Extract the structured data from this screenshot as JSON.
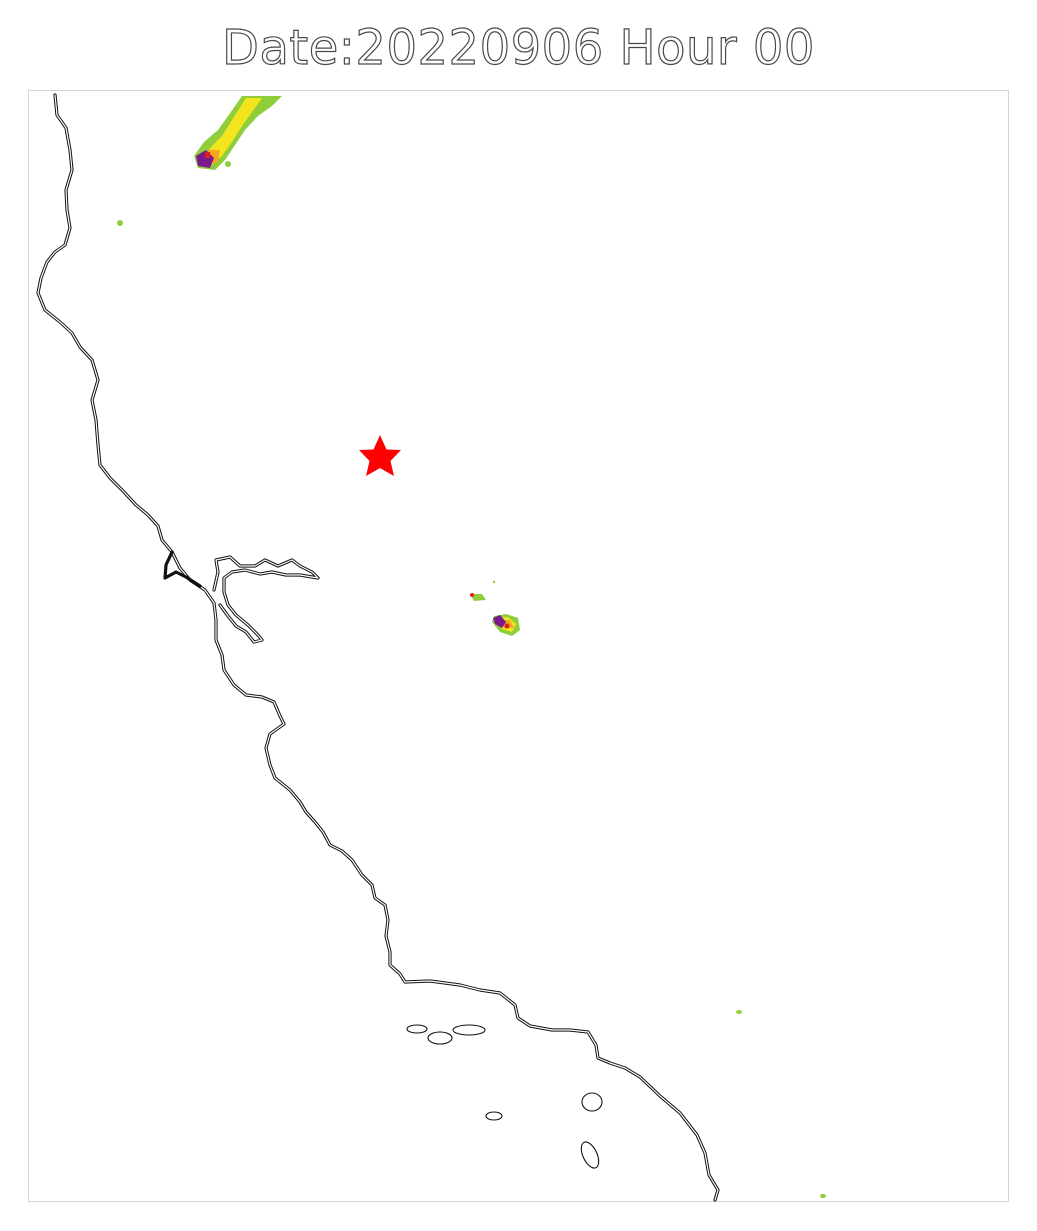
{
  "title": "Date:20220906 Hour 00",
  "colors": {
    "smoke_low": "#8fce3a",
    "smoke_mid": "#f2e51e",
    "smoke_high": "#f5a623",
    "smoke_veryhigh": "#e0201b",
    "smoke_extreme": "#7a1a8c",
    "marker": "#ff0000",
    "coastline": "#111111"
  },
  "marker": {
    "shape": "star",
    "icon": "star-icon"
  }
}
